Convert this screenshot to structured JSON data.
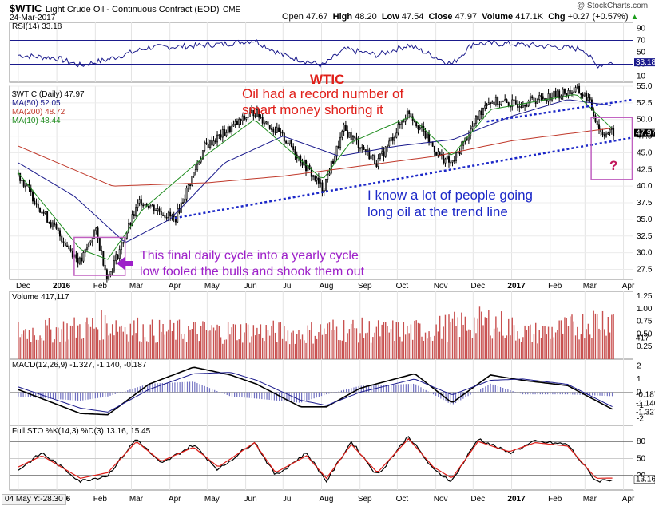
{
  "header": {
    "symbol": "$WTIC",
    "name": "Light Crude Oil - Continuous Contract (EOD)",
    "exchange": "CME",
    "date": "24-Mar-2017",
    "watermark": "@ StockCharts.com",
    "quote": {
      "open_label": "Open",
      "open": "47.67",
      "high_label": "High",
      "high": "48.20",
      "low_label": "Low",
      "low": "47.54",
      "close_label": "Close",
      "close": "47.97",
      "volume_label": "Volume",
      "volume": "417.1K",
      "chg_label": "Chg",
      "chg": "+0.27 (+0.57%)",
      "arrow": "▲"
    }
  },
  "colors": {
    "price": "#000000",
    "ma50": "#1a1a8c",
    "ma200": "#c0392b",
    "ma10": "#1e8c1e",
    "volume": "#c8504f",
    "trendline": "#1c28c8",
    "box": "#c060c0",
    "stoch_d": "#e0201a",
    "macd_hist": "#7070c0"
  },
  "annotations": {
    "wtic": "WTIC",
    "record_line1": "Oil had a record number of",
    "record_line2": "smart money shorting it",
    "trend_line1": "I know a lot of people going",
    "trend_line2": "long oil at the trend line",
    "cycle_line1": "This final daily cycle into a yearly cycle",
    "cycle_line2": "low fooled the bulls and shook them out",
    "question": "?"
  },
  "chart_data": [
    {
      "type": "line",
      "panel": "rsi",
      "label": "RSI(14) 33.18",
      "ylim": [
        0,
        100
      ],
      "yticks": [
        "90",
        "70",
        "50",
        "30",
        "10"
      ],
      "overbought": 70,
      "oversold": 30,
      "last_value": 33.18,
      "last_label": "33.18",
      "x": [
        "2015-12-01",
        "2016-01-01",
        "2016-01-20",
        "2016-02-11",
        "2016-03-15",
        "2016-04-15",
        "2016-05-15",
        "2016-06-08",
        "2016-07-01",
        "2016-08-02",
        "2016-08-20",
        "2016-09-15",
        "2016-10-10",
        "2016-11-14",
        "2016-12-01",
        "2016-12-30",
        "2017-01-30",
        "2017-02-28",
        "2017-03-10",
        "2017-03-24"
      ],
      "values": [
        45,
        40,
        28,
        38,
        58,
        60,
        64,
        70,
        45,
        28,
        55,
        45,
        62,
        30,
        65,
        64,
        60,
        55,
        28,
        33
      ]
    },
    {
      "type": "candlestick",
      "panel": "price",
      "label": "$WTIC (Daily) 47.97",
      "ylim": [
        26,
        55
      ],
      "yticks": [
        "55.0",
        "52.5",
        "50.0",
        "47.5",
        "45.0",
        "42.5",
        "40.0",
        "37.5",
        "35.0",
        "32.5",
        "30.0",
        "27.5"
      ],
      "x_ticks": [
        "Dec",
        "2016",
        "Feb",
        "Mar",
        "Apr",
        "May",
        "Jun",
        "Jul",
        "Aug",
        "Sep",
        "Oct",
        "Nov",
        "Dec",
        "2017",
        "Feb",
        "Mar",
        "Apr"
      ],
      "x": [
        "2015-12-01",
        "2015-12-21",
        "2016-01-12",
        "2016-01-20",
        "2016-02-01",
        "2016-02-11",
        "2016-03-08",
        "2016-04-05",
        "2016-04-29",
        "2016-05-26",
        "2016-06-08",
        "2016-07-05",
        "2016-08-02",
        "2016-08-19",
        "2016-09-15",
        "2016-10-10",
        "2016-11-03",
        "2016-11-14",
        "2016-12-12",
        "2017-01-03",
        "2017-02-22",
        "2017-03-03",
        "2017-03-14",
        "2017-03-24"
      ],
      "close": [
        41.8,
        36.0,
        30.4,
        28.5,
        33.5,
        26.2,
        37.9,
        35.0,
        45.9,
        49.5,
        51.2,
        46.6,
        39.5,
        48.5,
        43.5,
        51.3,
        44.7,
        43.3,
        52.8,
        52.3,
        54.4,
        53.3,
        48.0,
        47.97
      ],
      "last_value": "47.97",
      "last_label": "47.97",
      "series": [
        {
          "name": "MA(50) 52.05",
          "x": [
            "2015-12-01",
            "2016-01-15",
            "2016-02-25",
            "2016-04-01",
            "2016-05-15",
            "2016-07-01",
            "2016-08-15",
            "2016-10-01",
            "2016-11-15",
            "2017-01-01",
            "2017-02-15",
            "2017-03-24"
          ],
          "values": [
            43.5,
            38.5,
            31.5,
            35.0,
            43.5,
            47.5,
            44.5,
            46.0,
            47.0,
            50.5,
            53.0,
            52.05
          ]
        },
        {
          "name": "MA(200) 48.72",
          "x": [
            "2015-12-01",
            "2016-02-15",
            "2016-05-01",
            "2016-07-01",
            "2016-09-01",
            "2016-11-01",
            "2017-01-01",
            "2017-03-24"
          ],
          "values": [
            46.0,
            40.0,
            40.5,
            41.5,
            43.0,
            44.5,
            46.8,
            48.72
          ]
        },
        {
          "name": "MA(10) 48.44",
          "x": [
            "2015-12-01",
            "2016-01-20",
            "2016-02-11",
            "2016-03-10",
            "2016-04-29",
            "2016-06-08",
            "2016-08-02",
            "2016-08-24",
            "2016-10-12",
            "2016-11-14",
            "2016-12-15",
            "2017-02-22",
            "2017-03-24"
          ],
          "values": [
            42.0,
            30.5,
            29.0,
            36.5,
            44.5,
            50.0,
            41.0,
            46.5,
            50.5,
            44.5,
            51.5,
            53.8,
            48.44
          ]
        }
      ],
      "trendlines": [
        {
          "name": "lower",
          "x": [
            "2016-04-05",
            "2017-03-31"
          ],
          "values": [
            35.2,
            47.3
          ]
        },
        {
          "name": "upper",
          "x": [
            "2016-12-12",
            "2017-03-31"
          ],
          "values": [
            49.7,
            53.0
          ]
        }
      ]
    },
    {
      "type": "bar",
      "panel": "volume",
      "label": "Volume 417,117",
      "ylim": [
        0,
        1.25
      ],
      "yticks": [
        "1.25",
        "1.00",
        "0.75",
        "0.50",
        "0.25"
      ],
      "unit": "M",
      "last_label": "417",
      "x": [
        "2015-12",
        "2016-01",
        "2016-02",
        "2016-03",
        "2016-04",
        "2016-05",
        "2016-06",
        "2016-07",
        "2016-08",
        "2016-09",
        "2016-10",
        "2016-11",
        "2016-12",
        "2017-01",
        "2017-02",
        "2017-03"
      ],
      "values": [
        0.55,
        0.6,
        0.7,
        0.55,
        0.55,
        0.55,
        0.55,
        0.5,
        0.6,
        0.55,
        0.55,
        0.65,
        0.75,
        0.5,
        0.6,
        0.8
      ]
    },
    {
      "type": "line",
      "panel": "macd",
      "label": "MACD(12,26,9) -1.327, -1.140, -0.187",
      "ylim": [
        -2.5,
        2.5
      ],
      "yticks": [
        "2",
        "1",
        "0",
        "-1",
        "-2"
      ],
      "last_labels": [
        "-0.187",
        "-1.327",
        "-1.140"
      ],
      "x": [
        "2015-12-01",
        "2016-01-20",
        "2016-02-11",
        "2016-03-15",
        "2016-04-20",
        "2016-05-20",
        "2016-06-10",
        "2016-07-15",
        "2016-08-05",
        "2016-09-01",
        "2016-10-15",
        "2016-11-14",
        "2016-12-15",
        "2017-01-10",
        "2017-02-15",
        "2017-03-24"
      ],
      "series": [
        {
          "name": "MACD",
          "values": [
            0.2,
            -1.6,
            -1.7,
            0.6,
            1.9,
            1.3,
            0.6,
            -1.1,
            -1.1,
            0.3,
            1.4,
            -0.8,
            1.3,
            0.9,
            0.5,
            -1.327
          ]
        },
        {
          "name": "Signal",
          "values": [
            0.4,
            -1.2,
            -1.5,
            0.2,
            1.4,
            1.5,
            0.9,
            -0.6,
            -1.0,
            0.0,
            1.0,
            -0.2,
            0.9,
            1.0,
            0.6,
            -1.14
          ]
        }
      ]
    },
    {
      "type": "line",
      "panel": "stochastic",
      "label": "Full STO %K(14,3) %D(3) 13.16, 15.45",
      "ylim": [
        0,
        100
      ],
      "yticks": [
        "80",
        "50",
        "20"
      ],
      "last_labels": [
        "13.16"
      ],
      "x": [
        "2015-12-01",
        "2015-12-20",
        "2016-01-20",
        "2016-02-11",
        "2016-03-05",
        "2016-03-25",
        "2016-04-20",
        "2016-05-10",
        "2016-06-08",
        "2016-06-25",
        "2016-07-20",
        "2016-08-05",
        "2016-08-25",
        "2016-09-15",
        "2016-10-10",
        "2016-10-30",
        "2016-11-14",
        "2016-12-05",
        "2016-12-30",
        "2017-01-20",
        "2017-02-15",
        "2017-03-10",
        "2017-03-24"
      ],
      "series": [
        {
          "name": "%K",
          "values": [
            30,
            60,
            10,
            20,
            85,
            40,
            75,
            30,
            80,
            20,
            60,
            10,
            80,
            20,
            90,
            30,
            10,
            85,
            60,
            80,
            75,
            10,
            13.16
          ]
        },
        {
          "name": "%D",
          "values": [
            35,
            55,
            15,
            25,
            80,
            45,
            70,
            35,
            78,
            25,
            55,
            15,
            75,
            25,
            85,
            35,
            15,
            80,
            62,
            78,
            72,
            15,
            15.45
          ]
        }
      ]
    }
  ],
  "footer": {
    "cursor_readout": "04 May Y:-28.30"
  }
}
